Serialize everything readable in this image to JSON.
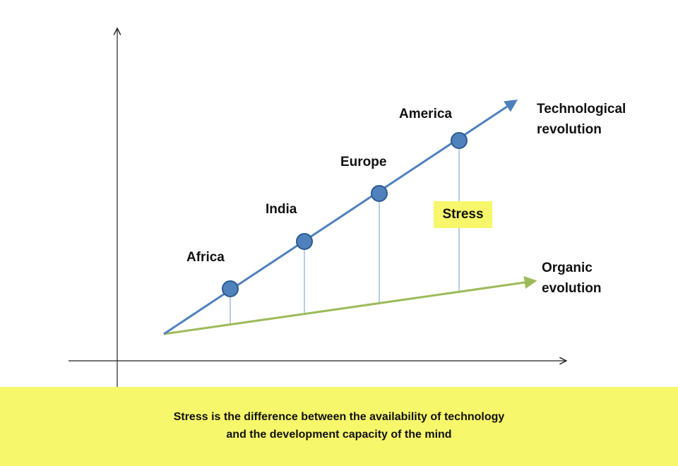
{
  "colors": {
    "tech_line": "#4F81BD",
    "organic_line": "#9BBB59",
    "point_fill": "#4F81BD",
    "point_stroke": "#2C5A8F",
    "connector": "#4F81BD",
    "axis": "#222222",
    "highlight": "#F7F76B"
  },
  "points": [
    {
      "label": "Africa"
    },
    {
      "label": "India"
    },
    {
      "label": "Europe"
    },
    {
      "label": "America"
    }
  ],
  "lines": {
    "technological": [
      "Technological",
      "revolution"
    ],
    "organic": [
      "Organic",
      "evolution"
    ]
  },
  "gap_label": "Stress",
  "caption": [
    "Stress is the difference  between the availability of technology",
    "and the development  capacity of the mind"
  ]
}
